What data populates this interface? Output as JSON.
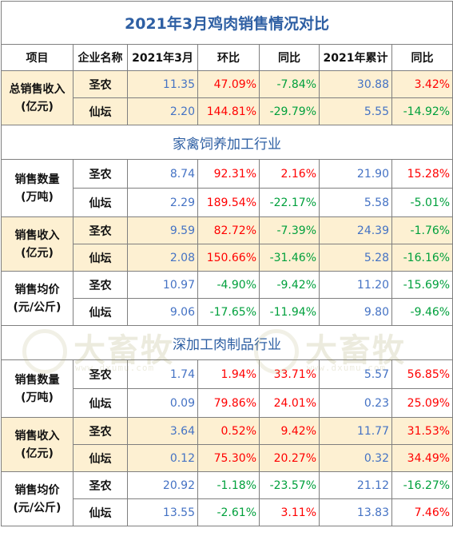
{
  "title": "2021年3月鸡肉销售情况对比",
  "headers": [
    "项目",
    "企业名称",
    "2021年3月",
    "环比",
    "同比",
    "2021年累计",
    "同比"
  ],
  "total": {
    "label_line1": "总销售收入",
    "label_line2": "(亿元)",
    "rows": [
      {
        "company": "圣农",
        "march": "11.35",
        "mom": "47.09%",
        "yoy": "-7.84%",
        "cum": "30.88",
        "cum_yoy": "3.42%"
      },
      {
        "company": "仙坛",
        "march": "2.20",
        "mom": "144.81%",
        "yoy": "-29.79%",
        "cum": "5.55",
        "cum_yoy": "-14.92%"
      }
    ]
  },
  "sections": [
    {
      "title": "家禽饲养加工行业",
      "groups": [
        {
          "label_line1": "销售数量",
          "label_line2": "(万吨)",
          "rows": [
            {
              "company": "圣农",
              "march": "8.74",
              "mom": "92.31%",
              "yoy": "2.16%",
              "cum": "21.90",
              "cum_yoy": "15.28%"
            },
            {
              "company": "仙坛",
              "march": "2.29",
              "mom": "189.54%",
              "yoy": "-22.17%",
              "cum": "5.58",
              "cum_yoy": "-5.01%"
            }
          ]
        },
        {
          "label_line1": "销售收入",
          "label_line2": "(亿元)",
          "rows": [
            {
              "company": "圣农",
              "march": "9.59",
              "mom": "82.72%",
              "yoy": "-7.39%",
              "cum": "24.39",
              "cum_yoy": "-1.76%"
            },
            {
              "company": "仙坛",
              "march": "2.08",
              "mom": "150.66%",
              "yoy": "-31.46%",
              "cum": "5.28",
              "cum_yoy": "-16.16%"
            }
          ]
        },
        {
          "label_line1": "销售均价",
          "label_line2": "(元/公斤)",
          "rows": [
            {
              "company": "圣农",
              "march": "10.97",
              "mom": "-4.90%",
              "yoy": "-9.42%",
              "cum": "11.20",
              "cum_yoy": "-15.69%"
            },
            {
              "company": "仙坛",
              "march": "9.06",
              "mom": "-17.65%",
              "yoy": "-11.94%",
              "cum": "9.80",
              "cum_yoy": "-9.46%"
            }
          ]
        }
      ]
    },
    {
      "title": "深加工肉制品行业",
      "groups": [
        {
          "label_line1": "销售数量",
          "label_line2": "(万吨)",
          "rows": [
            {
              "company": "圣农",
              "march": "1.74",
              "mom": "1.94%",
              "yoy": "33.71%",
              "cum": "5.57",
              "cum_yoy": "56.85%"
            },
            {
              "company": "仙坛",
              "march": "0.09",
              "mom": "79.86%",
              "yoy": "24.01%",
              "cum": "0.23",
              "cum_yoy": "25.09%"
            }
          ]
        },
        {
          "label_line1": "销售收入",
          "label_line2": "(亿元)",
          "rows": [
            {
              "company": "圣农",
              "march": "3.64",
              "mom": "0.52%",
              "yoy": "9.42%",
              "cum": "11.77",
              "cum_yoy": "31.53%"
            },
            {
              "company": "仙坛",
              "march": "0.12",
              "mom": "75.30%",
              "yoy": "20.27%",
              "cum": "0.32",
              "cum_yoy": "34.49%"
            }
          ]
        },
        {
          "label_line1": "销售均价",
          "label_line2": "(元/公斤)",
          "rows": [
            {
              "company": "圣农",
              "march": "20.92",
              "mom": "-1.18%",
              "yoy": "-23.57%",
              "cum": "21.12",
              "cum_yoy": "-16.27%"
            },
            {
              "company": "仙坛",
              "march": "13.55",
              "mom": "-2.61%",
              "yoy": "3.11%",
              "cum": "13.83",
              "cum_yoy": "7.46%"
            }
          ]
        }
      ]
    }
  ],
  "watermark": {
    "brand": "大畜牧",
    "url": "www.dxumu.com"
  },
  "colors": {
    "title": "#2e5fa3",
    "number": "#4472c4",
    "positive": "#ff0000",
    "negative": "#00a03c",
    "highlight": "#fdf0d2"
  }
}
